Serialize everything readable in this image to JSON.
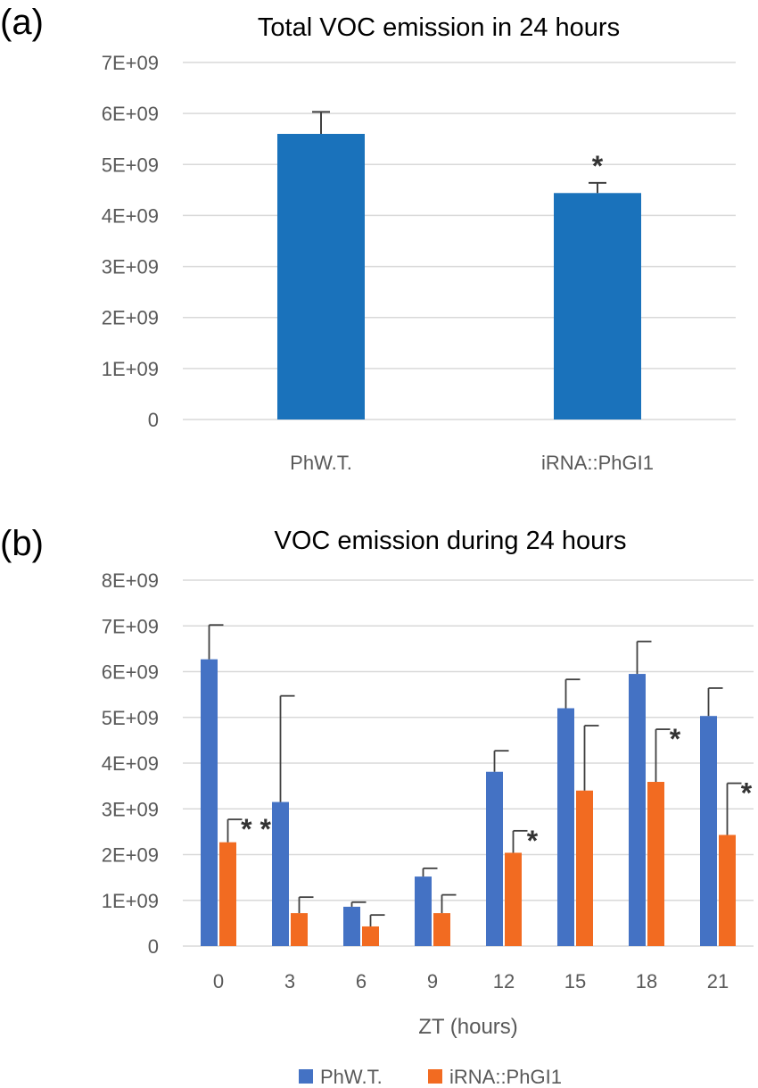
{
  "panel_a": {
    "label": "(a)",
    "chart_data": {
      "type": "bar",
      "title": "Total VOC emission in 24 hours",
      "categories": [
        "PhW.T.",
        "iRNA::PhGI1"
      ],
      "values": [
        5600000000.0,
        4440000000.0
      ],
      "errors": [
        430000000.0,
        200000000.0
      ],
      "significance": [
        "",
        "*"
      ],
      "color": "#1a72bb",
      "ylim": [
        0,
        7000000000.0
      ],
      "yticks": [
        0,
        1000000000.0,
        2000000000.0,
        3000000000.0,
        4000000000.0,
        5000000000.0,
        6000000000.0,
        7000000000.0
      ],
      "yticklabels": [
        "0",
        "1E+09",
        "2E+09",
        "3E+09",
        "4E+09",
        "5E+09",
        "6E+09",
        "7E+09"
      ],
      "grid": true
    }
  },
  "panel_b": {
    "label": "(b)",
    "chart_data": {
      "type": "bar",
      "title": "VOC emission during 24 hours",
      "xlabel": "ZT (hours)",
      "categories": [
        "0",
        "3",
        "6",
        "9",
        "12",
        "15",
        "18",
        "21"
      ],
      "series": [
        {
          "name": "PhW.T.",
          "color": "#4472c4",
          "values": [
            6270000000.0,
            3150000000.0,
            860000000.0,
            1520000000.0,
            3810000000.0,
            5200000000.0,
            5950000000.0,
            5030000000.0
          ],
          "errors": [
            750000000.0,
            2320000000.0,
            100000000.0,
            180000000.0,
            460000000.0,
            630000000.0,
            710000000.0,
            610000000.0
          ]
        },
        {
          "name": "iRNA::PhGI1",
          "color": "#f26b21",
          "values": [
            2270000000.0,
            720000000.0,
            430000000.0,
            720000000.0,
            2040000000.0,
            3400000000.0,
            3590000000.0,
            2430000000.0
          ],
          "errors": [
            500000000.0,
            350000000.0,
            250000000.0,
            400000000.0,
            480000000.0,
            1420000000.0,
            1150000000.0,
            1130000000.0
          ]
        }
      ],
      "significance": [
        "* *",
        "",
        "",
        "",
        "*",
        "",
        "*",
        "*"
      ],
      "ylim": [
        0,
        8000000000.0
      ],
      "yticks": [
        0,
        1000000000.0,
        2000000000.0,
        3000000000.0,
        4000000000.0,
        5000000000.0,
        6000000000.0,
        7000000000.0,
        8000000000.0
      ],
      "yticklabels": [
        "0",
        "1E+09",
        "2E+09",
        "3E+09",
        "4E+09",
        "5E+09",
        "6E+09",
        "7E+09",
        "8E+09"
      ],
      "grid": true,
      "legend": "bottom"
    }
  }
}
